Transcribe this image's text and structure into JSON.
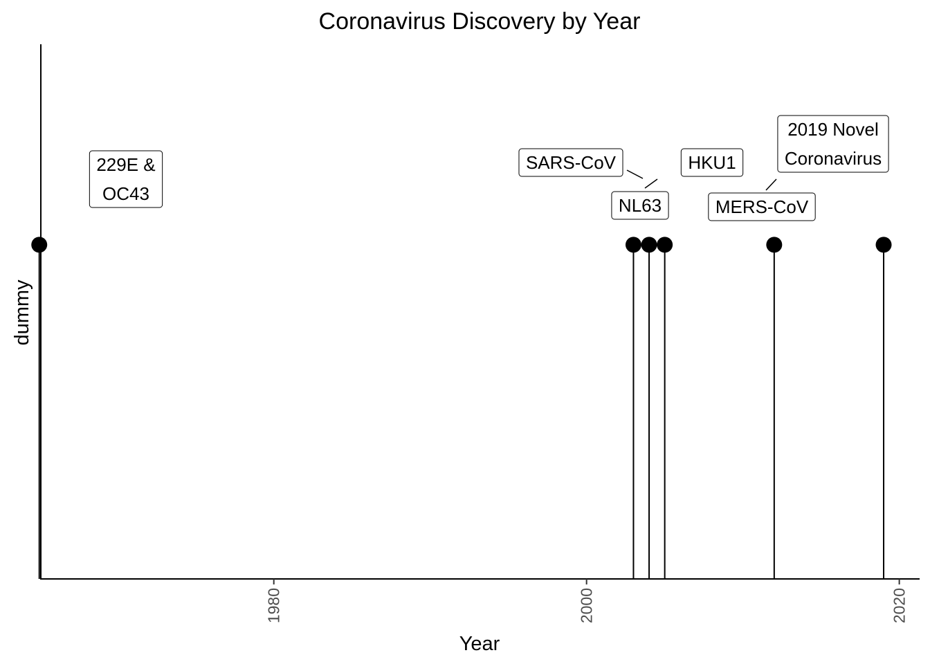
{
  "chart_data": {
    "type": "lollipop",
    "title": "Coronavirus Discovery by Year",
    "xlabel": "Year",
    "ylabel": "dummy",
    "xlim": [
      1965.1,
      2021.3
    ],
    "ylim": [
      0,
      1.6
    ],
    "x_ticks": [
      1980,
      2000,
      2020
    ],
    "grid": false,
    "legend": "none",
    "points": [
      {
        "x": 1965,
        "y": 1,
        "label": [
          "229E &",
          "OC43"
        ]
      },
      {
        "x": 2003,
        "y": 1,
        "label": [
          "SARS-CoV"
        ]
      },
      {
        "x": 2004,
        "y": 1,
        "label": [
          "NL63"
        ]
      },
      {
        "x": 2005,
        "y": 1,
        "label": [
          "HKU1"
        ]
      },
      {
        "x": 2012,
        "y": 1,
        "label": [
          "MERS-CoV"
        ]
      },
      {
        "x": 2019,
        "y": 1,
        "label": [
          "2019 Novel",
          "Coronavirus"
        ]
      }
    ]
  }
}
